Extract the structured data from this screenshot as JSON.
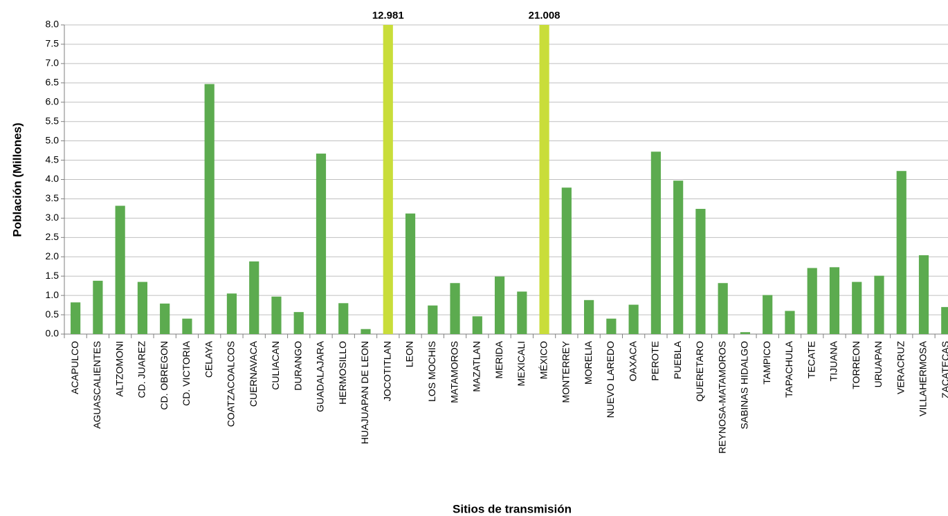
{
  "chart_data": {
    "type": "bar",
    "y_label": "Población (Millones)",
    "x_label": "Sitios de transmisión",
    "categories": [
      "ACAPULCO",
      "AGUASCALIENTES",
      "ALTZOMONI",
      "CD. JUAREZ",
      "CD. OBREGON",
      "CD. VICTORIA",
      "CELAYA",
      "COATZACOALCOS",
      "CUERNAVACA",
      "CULIACAN",
      "DURANGO",
      "GUADALAJARA",
      "HERMOSILLO",
      "HUAJUAPAN DE LEON",
      "JOCOTITLAN",
      "LEON",
      "LOS MOCHIS",
      "MATAMOROS",
      "MAZATLAN",
      "MERIDA",
      "MEXICALI",
      "MÉXICO",
      "MONTERREY",
      "MORELIA",
      "NUEVO LAREDO",
      "OAXACA",
      "PEROTE",
      "PUEBLA",
      "QUERETARO",
      "REYNOSA-MATAMOROS",
      "SABINAS HIDALGO",
      "TAMPICO",
      "TAPACHULA",
      "TECATE",
      "TIJUANA",
      "TORREON",
      "URUAPAN",
      "VERACRUZ",
      "VILLAHERMOSA",
      "ZACATECAS"
    ],
    "values": [
      0.82,
      1.38,
      3.32,
      1.35,
      0.79,
      0.4,
      6.47,
      1.05,
      1.88,
      0.97,
      0.57,
      4.67,
      0.8,
      0.13,
      12.981,
      3.12,
      0.74,
      1.32,
      0.46,
      1.49,
      1.1,
      21.008,
      3.79,
      0.88,
      0.4,
      0.76,
      4.72,
      3.97,
      3.24,
      1.32,
      0.05,
      1.01,
      0.6,
      1.71,
      1.73,
      1.35,
      1.51,
      4.22,
      2.04,
      0.7
    ],
    "value_labels": [
      null,
      null,
      null,
      null,
      null,
      null,
      null,
      null,
      null,
      null,
      null,
      null,
      null,
      null,
      "12.981",
      null,
      null,
      null,
      null,
      null,
      null,
      "21.008",
      null,
      null,
      null,
      null,
      null,
      null,
      null,
      null,
      null,
      null,
      null,
      null,
      null,
      null,
      null,
      null,
      null,
      null
    ],
    "colors": [
      "#5cab4f",
      "#5cab4f",
      "#5cab4f",
      "#5cab4f",
      "#5cab4f",
      "#5cab4f",
      "#5cab4f",
      "#5cab4f",
      "#5cab4f",
      "#5cab4f",
      "#5cab4f",
      "#5cab4f",
      "#5cab4f",
      "#5cab4f",
      "#c9dd3a",
      "#5cab4f",
      "#5cab4f",
      "#5cab4f",
      "#5cab4f",
      "#5cab4f",
      "#5cab4f",
      "#c9dd3a",
      "#5cab4f",
      "#5cab4f",
      "#5cab4f",
      "#5cab4f",
      "#5cab4f",
      "#5cab4f",
      "#5cab4f",
      "#5cab4f",
      "#5cab4f",
      "#5cab4f",
      "#5cab4f",
      "#5cab4f",
      "#5cab4f",
      "#5cab4f",
      "#5cab4f",
      "#5cab4f",
      "#5cab4f",
      "#5cab4f"
    ],
    "ylim": [
      0,
      8
    ],
    "yticks": [
      {
        "value": 0,
        "label": "0.0"
      },
      0.5,
      {
        "value": 1,
        "label": "1.0"
      },
      1.5,
      {
        "value": 2,
        "label": "2.0"
      },
      2.5,
      {
        "value": 3,
        "label": "3.0"
      },
      3.5,
      {
        "value": 4,
        "label": "4.0"
      },
      4.5,
      {
        "value": 5,
        "label": "5.0"
      },
      5.5,
      {
        "value": 6,
        "label": "6.0"
      },
      6.5,
      {
        "value": 7,
        "label": "7.0"
      },
      7.5,
      {
        "value": 8,
        "label": "8.0"
      }
    ],
    "grid": true
  }
}
